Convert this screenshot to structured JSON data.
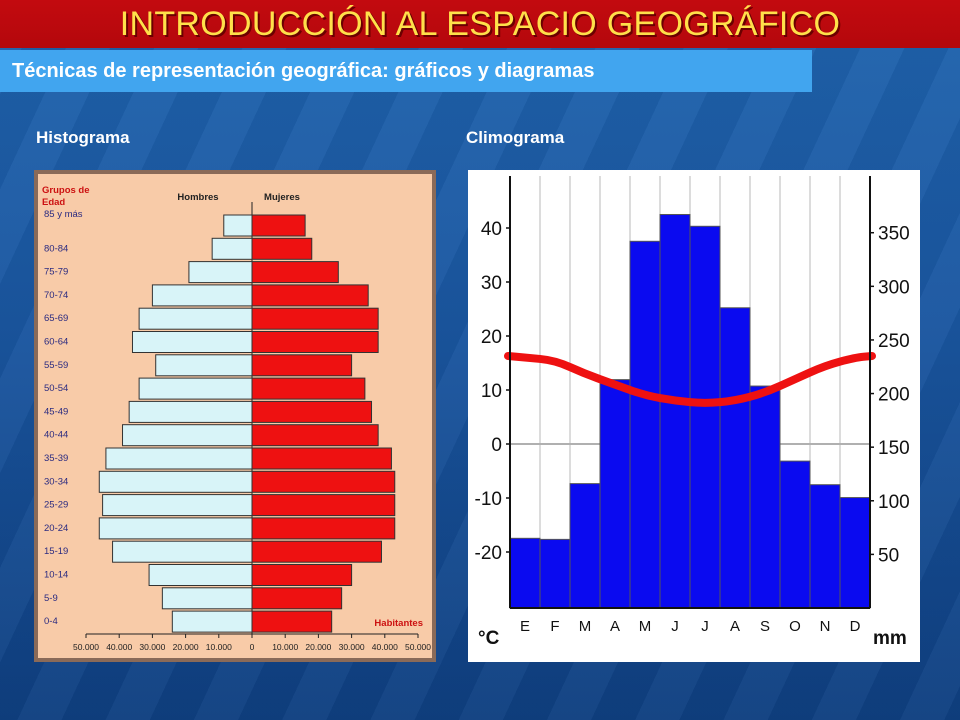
{
  "header": {
    "title": "INTRODUCCIÓN AL ESPACIO GEOGRÁFICO",
    "subtitle": "Técnicas de representación geográfica: gráficos y diagramas"
  },
  "labels": {
    "left_panel": "Histograma",
    "right_panel": "Climograma"
  },
  "colors": {
    "male_bar": "#d8f4f8",
    "female_bar": "#ee1111",
    "histogram_bg": "#f8cba8",
    "precip_bar": "#0a0af0",
    "temperature_line": "#ee1111"
  },
  "chart_data": [
    {
      "type": "bar",
      "chart": "population-pyramid",
      "ylabel_lines": [
        "Grupos de",
        "Edad"
      ],
      "legend_male": "Hombres",
      "legend_female": "Mujeres",
      "xlabel": "Habitantes",
      "categories": [
        "85 y más",
        "80-84",
        "75-79",
        "70-74",
        "65-69",
        "60-64",
        "55-59",
        "50-54",
        "45-49",
        "40-44",
        "35-39",
        "30-34",
        "25-29",
        "20-24",
        "15-19",
        "10-14",
        "5-9",
        "0-4"
      ],
      "series": [
        {
          "name": "Hombres",
          "values": [
            8500,
            12000,
            19000,
            30000,
            34000,
            36000,
            29000,
            34000,
            37000,
            39000,
            44000,
            46000,
            45000,
            46000,
            42000,
            31000,
            27000,
            24000
          ]
        },
        {
          "name": "Mujeres",
          "values": [
            16000,
            18000,
            26000,
            35000,
            38000,
            38000,
            30000,
            34000,
            36000,
            38000,
            42000,
            43000,
            43000,
            43000,
            39000,
            30000,
            27000,
            24000
          ]
        }
      ],
      "xticks": [
        "50.000",
        "40.000",
        "30.000",
        "20.000",
        "10.000",
        "0",
        "10.000",
        "20.000",
        "30.000",
        "40.000",
        "50.000"
      ],
      "xlim": [
        -50000,
        50000
      ]
    },
    {
      "type": "bar",
      "chart": "climograph",
      "categories": [
        "E",
        "F",
        "M",
        "A",
        "M",
        "J",
        "J",
        "A",
        "S",
        "O",
        "N",
        "D"
      ],
      "series": [
        {
          "kind": "bar",
          "axis": "right",
          "values": [
            65,
            64,
            116,
            213,
            342,
            367,
            356,
            280,
            207,
            137,
            115,
            103
          ]
        },
        {
          "kind": "line",
          "axis": "left",
          "values": [
            16,
            15.5,
            13,
            11,
            9,
            8,
            7.5,
            8,
            9.5,
            12,
            14.5,
            16
          ]
        }
      ],
      "left_axis": {
        "unit": "°C",
        "ticks": [
          "40",
          "30",
          "20",
          "10",
          "0",
          "-10",
          "-20"
        ],
        "range": [
          -30,
          50
        ]
      },
      "right_axis": {
        "unit": "mm",
        "ticks": [
          "350",
          "300",
          "250",
          "200",
          "150",
          "100",
          "50"
        ],
        "range": [
          0,
          400
        ]
      }
    }
  ]
}
